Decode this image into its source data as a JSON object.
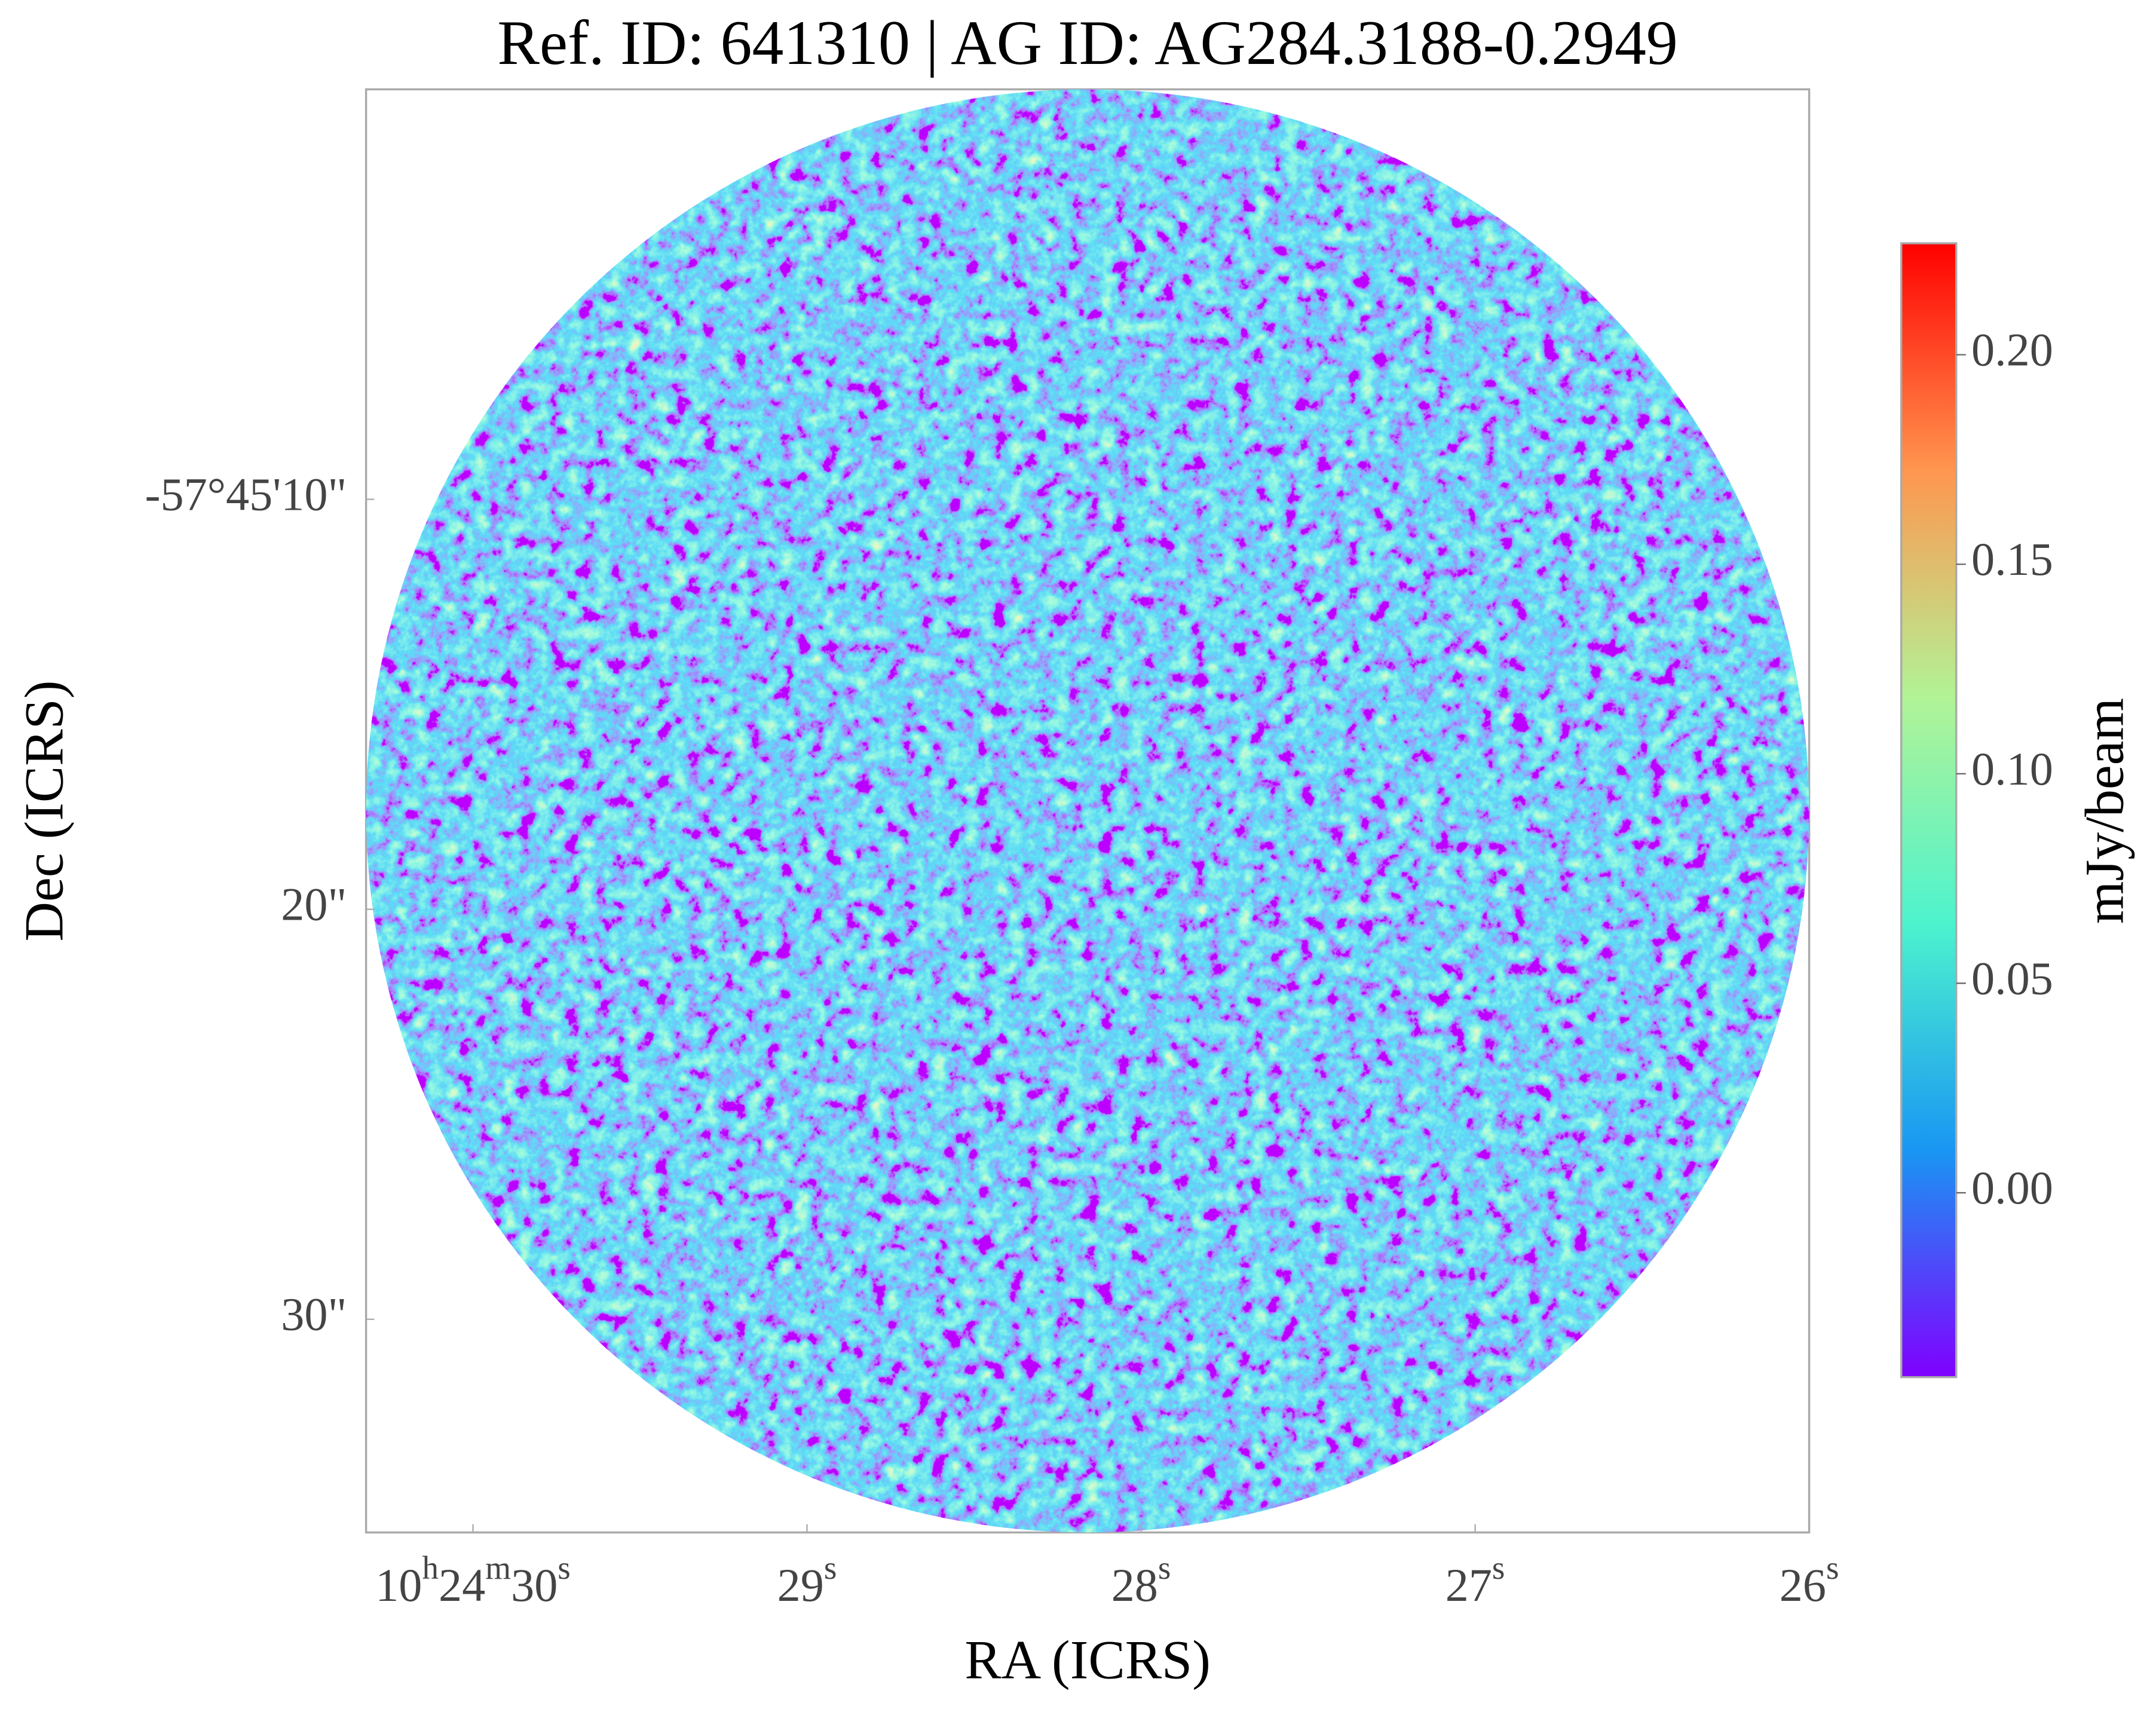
{
  "chart_data": {
    "type": "image",
    "title": "Ref. ID: 641310 | AG ID: AG284.3188-0.2949",
    "xlabel": "RA (ICRS)",
    "ylabel": "Dec (ICRS)",
    "xlim": [
      30.32,
      26
    ],
    "ylim": [
      0,
      35.2
    ],
    "xticks": [
      {
        "value": 30,
        "label": "10h24m30s"
      },
      {
        "value": 29,
        "label": "29s"
      },
      {
        "value": 28,
        "label": "28s"
      },
      {
        "value": 27,
        "label": "27s"
      },
      {
        "value": 26,
        "label": "26s"
      }
    ],
    "yticks": [
      {
        "value": 10,
        "label": "-57°45'10\""
      },
      {
        "value": 20,
        "label": "20\""
      },
      {
        "value": 30,
        "label": "30\""
      }
    ],
    "colormap": "rainbow",
    "colorbar": {
      "label": "mJy/beam",
      "lim": [
        -0.044,
        0.2266
      ],
      "ticks": [
        {
          "value": 0,
          "label": "0.00"
        },
        {
          "value": 0.05,
          "label": "0.05"
        },
        {
          "value": 0.1,
          "label": "0.10"
        },
        {
          "value": 0.15,
          "label": "0.15"
        },
        {
          "value": 0.2,
          "label": "0.20"
        }
      ]
    }
  }
}
